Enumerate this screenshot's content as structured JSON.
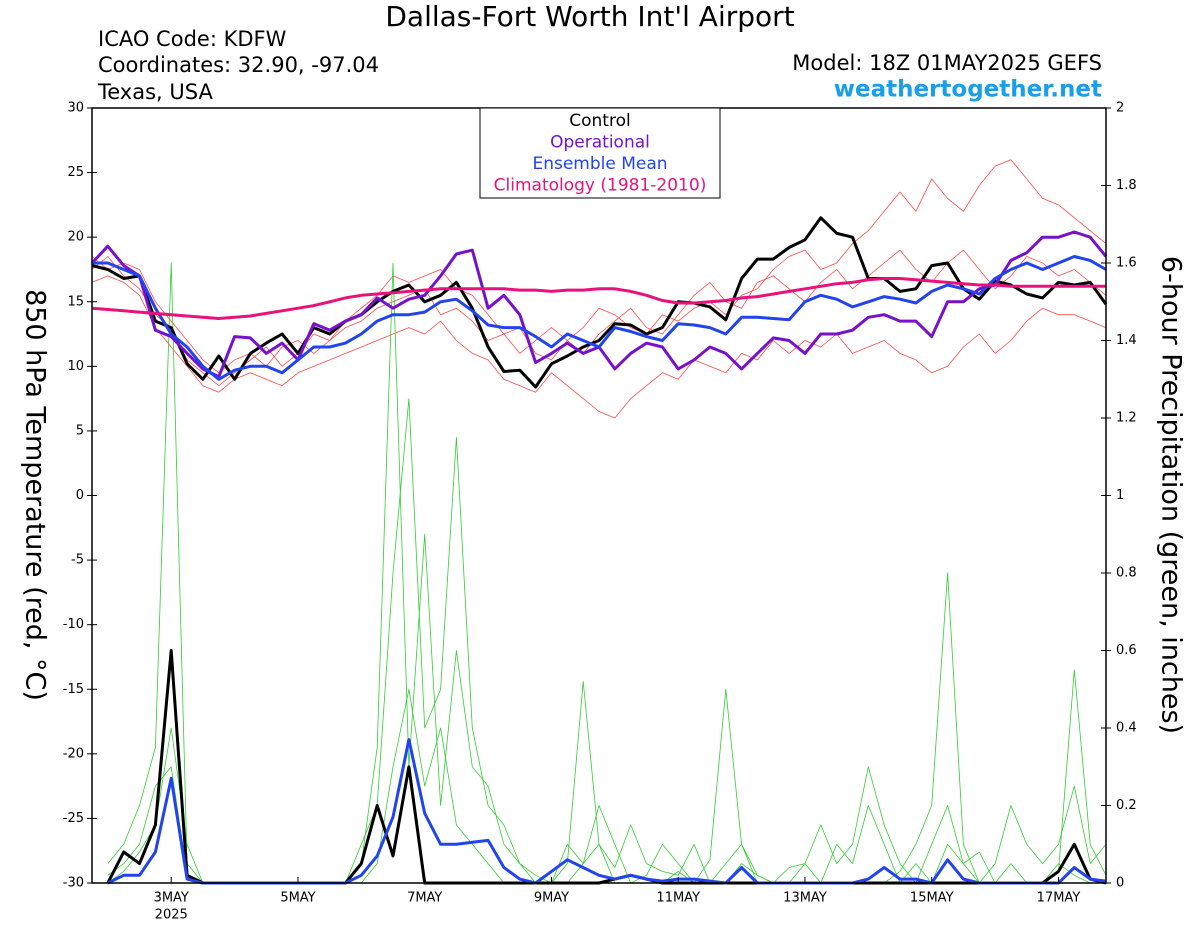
{
  "chart_data": {
    "type": "line",
    "title": "Dallas-Fort Worth Int'l Airport",
    "info_lines": [
      "ICAO Code: KDFW",
      "Coordinates: 32.90, -97.04",
      "Texas, USA"
    ],
    "model": "Model: 18Z 01MAY2025 GEFS",
    "site": "weathertogether.net",
    "y_label": "850 hPa Temperature (red, °C)",
    "y2_label": "6-hour Precipitation (green, inches)",
    "x_sublabel": "2025",
    "xlim": [
      1.75,
      17.75
    ],
    "xticks": [
      {
        "value": 3,
        "label": "3MAY"
      },
      {
        "value": 5,
        "label": "5MAY"
      },
      {
        "value": 7,
        "label": "7MAY"
      },
      {
        "value": 9,
        "label": "9MAY"
      },
      {
        "value": 11,
        "label": "11MAY"
      },
      {
        "value": 13,
        "label": "13MAY"
      },
      {
        "value": 15,
        "label": "15MAY"
      },
      {
        "value": 17,
        "label": "17MAY"
      }
    ],
    "ylim": [
      -30,
      30
    ],
    "yticks": [
      -30,
      -25,
      -20,
      -15,
      -10,
      -5,
      0,
      5,
      10,
      15,
      20,
      25,
      30
    ],
    "y2lim": [
      0,
      2
    ],
    "y2ticks": [
      0,
      0.2,
      0.4,
      0.6,
      0.8,
      1,
      1.2,
      1.4,
      1.6,
      1.8,
      2
    ],
    "x": [
      1.75,
      2,
      2.25,
      2.5,
      2.75,
      3,
      3.25,
      3.5,
      3.75,
      4,
      4.25,
      4.5,
      4.75,
      5,
      5.25,
      5.5,
      5.75,
      6,
      6.25,
      6.5,
      6.75,
      7,
      7.25,
      7.5,
      7.75,
      8,
      8.25,
      8.5,
      8.75,
      9,
      9.25,
      9.5,
      9.75,
      10,
      10.25,
      10.5,
      10.75,
      11,
      11.25,
      11.5,
      11.75,
      12,
      12.25,
      12.5,
      12.75,
      13,
      13.25,
      13.5,
      13.75,
      14,
      14.25,
      14.5,
      14.75,
      15,
      15.25,
      15.5,
      15.75,
      16,
      16.25,
      16.5,
      16.75,
      17,
      17.25,
      17.5,
      17.75
    ],
    "series": [
      {
        "color": "#ff4a4a",
        "values": [
          17.5,
          18.5,
          17.0,
          16.0,
          14.0,
          13.0,
          10.5,
          9.5,
          8.5,
          9.5,
          10.5,
          11.5,
          10.0,
          11.0,
          12.5,
          12.0,
          13.5,
          14.5,
          15.5,
          17.0,
          16.5,
          17.0,
          17.5,
          16.0,
          15.5,
          14.0,
          12.5,
          13.0,
          11.0,
          10.5,
          12.0,
          13.0,
          14.5,
          14.0,
          13.0,
          12.5,
          14.0,
          13.5,
          14.5,
          15.0,
          14.0,
          15.5,
          16.0,
          17.5,
          18.5,
          19.0,
          17.5,
          18.0,
          19.5,
          20.5,
          22.0,
          23.5,
          22.0,
          24.5,
          23.0,
          22.0,
          24.0,
          25.5,
          26.0,
          24.5,
          23.0,
          22.5,
          21.5,
          20.5,
          19.5
        ]
      },
      {
        "color": "#ff4a4a",
        "values": [
          16.5,
          17.0,
          16.5,
          15.5,
          13.0,
          11.5,
          10.0,
          8.5,
          8.0,
          9.0,
          9.5,
          9.0,
          8.5,
          9.5,
          10.0,
          10.5,
          11.0,
          11.5,
          12.0,
          12.5,
          13.0,
          12.5,
          13.5,
          12.0,
          11.0,
          10.5,
          9.0,
          8.5,
          8.0,
          9.5,
          8.5,
          7.5,
          6.5,
          6.0,
          7.5,
          8.5,
          9.5,
          9.0,
          10.5,
          10.0,
          9.5,
          11.0,
          10.5,
          12.0,
          11.0,
          12.0,
          11.5,
          12.5,
          11.0,
          11.5,
          12.0,
          11.0,
          10.5,
          9.5,
          10.0,
          11.5,
          12.5,
          11.0,
          12.0,
          13.5,
          14.5,
          14.0,
          14.0,
          13.5,
          13.0
        ]
      },
      {
        "color": "#ff4a4a",
        "values": [
          18.5,
          17.5,
          18.0,
          17.5,
          15.0,
          13.5,
          12.0,
          10.5,
          9.5,
          10.5,
          11.0,
          10.0,
          11.5,
          12.0,
          11.0,
          12.0,
          13.0,
          13.5,
          14.5,
          15.0,
          15.5,
          16.0,
          14.0,
          14.5,
          13.5,
          12.0,
          12.5,
          11.0,
          12.0,
          13.0,
          12.0,
          11.0,
          12.5,
          13.5,
          14.5,
          13.0,
          12.5,
          14.0,
          15.5,
          16.5,
          15.0,
          14.5,
          16.5,
          17.0,
          16.0,
          15.0,
          16.5,
          17.5,
          16.0,
          17.0,
          18.0,
          19.0,
          17.5,
          16.5,
          18.0,
          19.0,
          17.5,
          16.0,
          17.0,
          18.5,
          18.0,
          17.0,
          17.5,
          16.5,
          15.5
        ]
      },
      {
        "color": "#33cc33",
        "axis": "y2",
        "values": [
          null,
          0.05,
          0.1,
          0.2,
          0.35,
          1.6,
          0.05,
          0,
          0,
          0,
          0,
          0,
          0,
          0,
          0,
          0,
          0,
          0,
          0.05,
          0.3,
          0.5,
          0.25,
          0.4,
          0.15,
          0.1,
          0.05,
          0,
          0,
          0,
          0,
          0.05,
          0.52,
          0.1,
          0,
          0,
          0,
          0,
          0.03,
          0,
          0,
          0,
          0.05,
          0.02,
          0,
          0,
          0,
          0,
          0,
          0,
          0,
          0,
          0.03,
          0.1,
          0.2,
          0.8,
          0.1,
          0,
          0,
          0,
          0,
          0,
          0.05,
          0.02,
          0,
          0
        ]
      },
      {
        "color": "#33cc33",
        "axis": "y2",
        "values": [
          null,
          0,
          0.03,
          0.08,
          0.15,
          0.4,
          0.1,
          0,
          0,
          0,
          0,
          0,
          0,
          0,
          0,
          0,
          0,
          0.05,
          0.35,
          1.6,
          0.3,
          0.9,
          0.2,
          0.6,
          0.3,
          0.25,
          0.1,
          0.05,
          0,
          0,
          0,
          0.05,
          0.2,
          0.1,
          0,
          0.02,
          0.1,
          0.05,
          0,
          0.06,
          0.5,
          0.1,
          0,
          0,
          0.04,
          0.05,
          0,
          0.1,
          0.05,
          0.2,
          0.1,
          0,
          0.05,
          0,
          0.1,
          0.05,
          0.08,
          0,
          0.05,
          0,
          0,
          0.03,
          0.55,
          0.1,
          0.02
        ]
      },
      {
        "color": "#33cc33",
        "axis": "y2",
        "values": [
          null,
          0.02,
          0.05,
          0.1,
          0.25,
          0.3,
          0.02,
          0,
          0,
          0,
          0,
          0,
          0,
          0,
          0,
          0,
          0,
          0.1,
          0.2,
          0.8,
          1.25,
          0.4,
          0.5,
          1.15,
          0.4,
          0.2,
          0.15,
          0.05,
          0.02,
          0,
          0.1,
          0.05,
          0.1,
          0.04,
          0.15,
          0.05,
          0.03,
          0.02,
          0.1,
          0,
          0.05,
          0.1,
          0.02,
          0,
          0,
          0.05,
          0.15,
          0.05,
          0.1,
          0.3,
          0.15,
          0.05,
          0,
          0.1,
          0.2,
          0.05,
          0,
          0.05,
          0.2,
          0.1,
          0.05,
          0.1,
          0.25,
          0.05,
          0.1
        ]
      },
      {
        "color": "#000000",
        "axis": "y2",
        "values": [
          null,
          0,
          0.08,
          0.05,
          0.15,
          0.6,
          0.02,
          0,
          0,
          0,
          0,
          0,
          0,
          0,
          0,
          0,
          0,
          0.05,
          0.2,
          0.07,
          0.3,
          0,
          0,
          0,
          0,
          0,
          0,
          0,
          0,
          0,
          0,
          0,
          0,
          0.01,
          0.02,
          0.01,
          0,
          0,
          0,
          0,
          0,
          0,
          0,
          0,
          0,
          0,
          0,
          0,
          0,
          0,
          0,
          0,
          0,
          0,
          0,
          0,
          0,
          0,
          0,
          0,
          0,
          0.03,
          0.1,
          0.01,
          0
        ]
      },
      {
        "color": "#2244ee",
        "axis": "y2",
        "values": [
          null,
          0,
          0.02,
          0.02,
          0.08,
          0.27,
          0.01,
          0,
          0,
          0,
          0,
          0,
          0,
          0,
          0,
          0,
          0,
          0.02,
          0.07,
          0.17,
          0.37,
          0.18,
          0.1,
          0.1,
          0.105,
          0.11,
          0.04,
          0.01,
          0,
          0.03,
          0.06,
          0.04,
          0.02,
          0.01,
          0.02,
          0.01,
          0.005,
          0.01,
          0.01,
          0.005,
          0,
          0.04,
          0,
          0,
          0,
          0,
          0,
          0,
          0,
          0.01,
          0.04,
          0.01,
          0.01,
          0,
          0.06,
          0.01,
          0,
          0,
          0,
          0,
          0,
          0,
          0.04,
          0.01,
          0.005
        ]
      },
      {
        "name": "Control",
        "color": "#000000",
        "values": [
          17.8,
          17.5,
          16.8,
          17.0,
          13.5,
          13.0,
          10.2,
          9.0,
          10.8,
          9.0,
          11.0,
          11.8,
          12.5,
          11.0,
          13.0,
          12.5,
          13.5,
          14.0,
          15.0,
          15.8,
          16.3,
          15.0,
          15.5,
          16.5,
          14.5,
          11.5,
          9.6,
          9.7,
          8.4,
          10.2,
          10.8,
          11.5,
          12.0,
          13.3,
          13.2,
          12.5,
          13.0,
          15.0,
          14.9,
          14.6,
          13.6,
          16.8,
          18.3,
          18.3,
          19.2,
          19.8,
          21.5,
          20.3,
          20.0,
          16.8,
          16.8,
          15.8,
          16.0,
          17.8,
          18.0,
          16.0,
          15.2,
          16.6,
          16.3,
          15.6,
          15.3,
          16.5,
          16.3,
          16.5,
          14.8
        ]
      },
      {
        "name": "Operational",
        "color": "#7711cc",
        "values": [
          18.0,
          19.3,
          17.8,
          17.0,
          12.8,
          12.3,
          11.0,
          9.8,
          9.2,
          12.3,
          12.2,
          11.0,
          11.8,
          10.5,
          13.3,
          12.8,
          13.5,
          14.0,
          15.3,
          14.5,
          15.2,
          15.5,
          17.0,
          18.7,
          19.0,
          14.5,
          15.5,
          14.0,
          10.3,
          11.0,
          11.8,
          11.0,
          11.5,
          9.8,
          11.0,
          11.8,
          11.5,
          9.8,
          10.5,
          11.5,
          11.0,
          9.8,
          11.0,
          12.2,
          12.0,
          11.0,
          12.5,
          12.5,
          12.8,
          13.8,
          14.0,
          13.5,
          13.5,
          12.3,
          15.0,
          15.0,
          16.0,
          16.3,
          18.2,
          18.8,
          20.0,
          20.0,
          20.4,
          20.0,
          18.5
        ]
      },
      {
        "name": "Ensemble Mean",
        "color": "#2244ee",
        "values": [
          18.0,
          18.0,
          17.5,
          17.0,
          14.5,
          12.5,
          11.5,
          10.0,
          9.0,
          9.7,
          10.0,
          10.0,
          9.5,
          10.5,
          11.5,
          11.5,
          11.8,
          12.5,
          13.5,
          14.0,
          14.0,
          14.2,
          15.0,
          15.2,
          14.3,
          13.2,
          13.0,
          13.0,
          12.3,
          11.5,
          12.5,
          12.0,
          11.5,
          13.0,
          12.7,
          12.3,
          12.0,
          13.3,
          13.2,
          13.0,
          12.5,
          13.8,
          13.8,
          13.7,
          13.6,
          15.0,
          15.5,
          15.2,
          14.6,
          15.0,
          15.4,
          15.2,
          14.9,
          15.8,
          16.3,
          16.0,
          15.6,
          16.8,
          17.5,
          18.0,
          17.5,
          18.0,
          18.5,
          18.2,
          17.5
        ]
      },
      {
        "name": "Climatology (1981-2010)",
        "color": "#e8127a",
        "values": [
          14.5,
          14.4,
          14.3,
          14.2,
          14.1,
          14.0,
          13.9,
          13.8,
          13.7,
          13.8,
          13.9,
          14.1,
          14.3,
          14.5,
          14.7,
          15.0,
          15.3,
          15.5,
          15.6,
          15.7,
          15.8,
          15.9,
          16.0,
          16.0,
          16.0,
          16.0,
          16.0,
          15.9,
          15.9,
          15.8,
          15.9,
          15.9,
          16.0,
          16.0,
          15.8,
          15.5,
          15.1,
          14.9,
          14.9,
          15.0,
          15.1,
          15.3,
          15.4,
          15.6,
          15.8,
          16.0,
          16.2,
          16.4,
          16.5,
          16.7,
          16.8,
          16.8,
          16.7,
          16.6,
          16.5,
          16.4,
          16.3,
          16.3,
          16.2,
          16.2,
          16.2,
          16.2,
          16.2,
          16.2,
          16.2
        ]
      }
    ]
  }
}
